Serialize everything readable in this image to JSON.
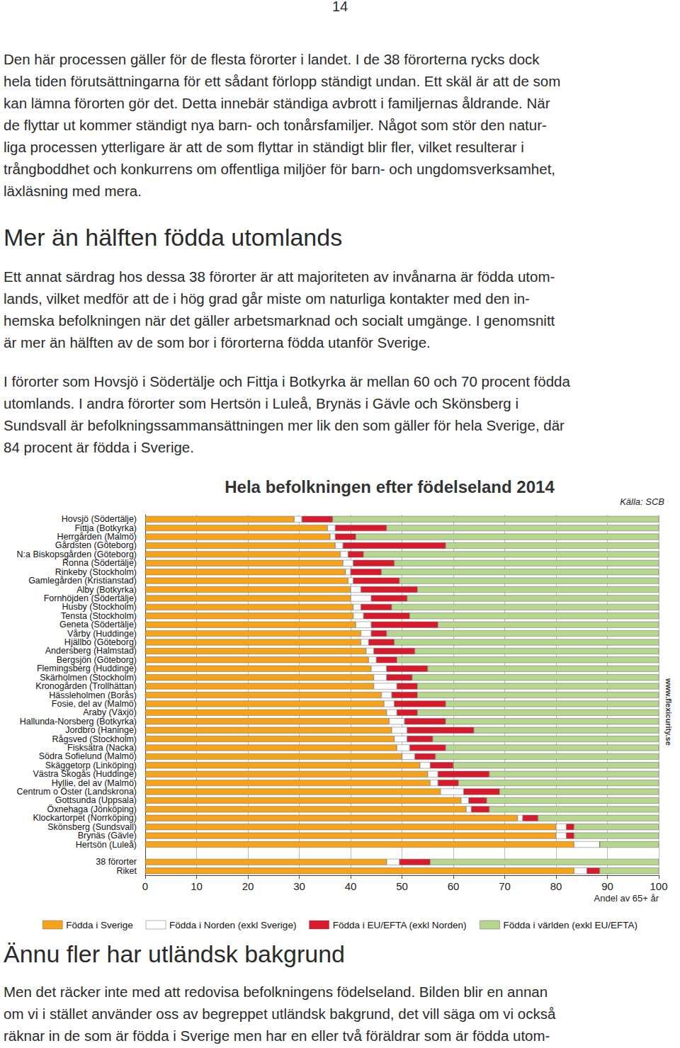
{
  "page": {
    "number": "14",
    "intro": [
      "Den här processen gäller för de flesta förorter i landet. I de 38 förorterna rycks dock",
      "hela tiden förutsättningarna för ett sådant förlopp ständigt undan. Ett skäl är att de som",
      "kan lämna förorten gör det. Detta innebär ständiga avbrott i familjernas åldrande. När",
      "de flyttar ut kommer ständigt nya barn- och tonårsfamiljer. Något som stör den natur-",
      "liga processen ytterligare är att de som flyttar in ständigt blir fler, vilket resulterar i",
      "trångboddhet och konkurrens om offentliga miljöer för barn- och ungdomsverksamhet,",
      "läxläsning med mera."
    ],
    "heading_1": "Mer än hälften födda utomlands",
    "section_1": [
      [
        "Ett annat särdrag hos dessa 38 förorter är att majoriteten av invånarna är födda utom-",
        "lands, vilket medför att de i hög grad går miste om naturliga kontakter med den in-",
        "hemska befolkningen när det gäller arbetsmarknad och socialt umgänge. I genomsnitt",
        "är mer än hälften av de som bor i förorterna födda utanför Sverige."
      ],
      [
        "I förorter som Hovsjö i Södertälje och Fittja i Botkyrka är mellan 60 och 70 procent födda",
        "utomlands. I andra förorter som Hertsön i Luleå, Brynäs i Gävle och Skönsberg i",
        "Sundsvall är befolkningssammansättningen mer lik den som gäller för hela Sverige, där",
        "84 procent är födda i Sverige."
      ]
    ],
    "heading_2": "Ännu fler har utländsk bakgrund",
    "section_2": [
      [
        "Men det räcker inte med att redovisa befolkningens födelseland. Bilden blir en annan",
        "om vi i stället använder oss av begreppet utländsk bakgrund, det vill säga om vi också",
        "räknar in de som är födda i Sverige men har en eller två föräldrar som är födda utom-"
      ]
    ]
  },
  "chart_data": {
    "type": "bar",
    "orientation": "horizontal",
    "stacked": true,
    "title": "Hela befolkningen efter födelseland 2014",
    "source": "Källa: SCB",
    "watermark": "www.flexicurity.se",
    "x_label": "Andel av 65+ år",
    "categories": [
      "Hovsjö (Södertälje)",
      "Fittja (Botkyrka)",
      "Herrgården (Malmö)",
      "Gårdsten (Göteborg)",
      "N:a Biskopsgården (Göteborg)",
      "Ronna (Södertälje)",
      "Rinkeby (Stockholm)",
      "Gamlegården (Kristianstad)",
      "Alby (Botkyrka)",
      "Fornhöjden (Södertälje)",
      "Husby (Stockholm)",
      "Tensta (Stockholm)",
      "Geneta (Södertälje)",
      "Vårby (Huddinge)",
      "Hjällbo (Göteborg)",
      "Andersberg (Halmstad)",
      "Bergsjön (Göteborg)",
      "Flemingsberg (Huddinge)",
      "Skärholmen (Stockholm)",
      "Kronogården (Trollhättan)",
      "Hässleholmen (Borås)",
      "Fosie, del av (Malmö)",
      "Araby (Växjö)",
      "Hallunda-Norsberg (Botkyrka)",
      "Jordbro (Haninge)",
      "Rågsved (Stockholm)",
      "Fisksätra (Nacka)",
      "Södra Sofielund (Malmö)",
      "Skäggetorp (Linköping)",
      "Västra Skogås (Huddinge)",
      "Hyllie, del av (Malmö)",
      "Centrum o Öster (Landskrona)",
      "Gottsunda (Uppsala)",
      "Öxnehaga (Jönköping)",
      "Klockartorpet (Norrköping)",
      "Skönsberg (Sundsvall)",
      "Brynäs (Gävle)",
      "Hertsön (Luleå)",
      null,
      "38 förorter",
      "Riket"
    ],
    "series": [
      {
        "name": "Födda i Sverige",
        "color": "#f5a31a",
        "values": [
          29,
          35.5,
          36,
          37,
          38,
          38.5,
          39,
          39.5,
          40,
          40,
          40.5,
          40.5,
          41,
          42,
          42,
          43,
          43.5,
          44,
          44.5,
          44.5,
          46,
          46.5,
          47,
          47.5,
          48,
          48.5,
          49,
          50,
          53.5,
          55,
          55.5,
          57.5,
          61.5,
          62.5,
          72.5,
          80,
          80,
          83.5,
          null,
          47,
          83.5
        ]
      },
      {
        "name": "Födda i Norden (exkl Sverige)",
        "color": "#ffffff",
        "values": [
          1.5,
          1.5,
          1,
          1.5,
          1.5,
          2,
          1,
          1,
          2,
          4,
          1.5,
          2,
          3,
          2,
          1.5,
          1.5,
          1.5,
          3,
          2.5,
          4.5,
          2,
          2,
          2,
          3,
          3,
          2.5,
          2.5,
          2.5,
          2,
          2,
          1.5,
          4.5,
          1.5,
          1,
          1,
          2,
          2,
          5,
          null,
          2.5,
          2.5
        ]
      },
      {
        "name": "Födda i EU/EFTA (exkl Norden)",
        "color": "#d71a2c",
        "values": [
          6,
          10,
          4,
          20,
          3,
          8,
          6,
          9,
          11,
          7,
          6,
          9,
          13,
          3,
          5,
          8,
          4,
          8,
          5,
          4,
          5,
          10,
          4,
          8,
          13,
          5,
          7,
          4,
          4.5,
          10,
          4,
          7,
          3.5,
          3.5,
          3,
          1.5,
          1.5,
          0,
          null,
          6,
          2.5
        ]
      },
      {
        "name": "Födda i världen (exkl EU/EFTA)",
        "color": "#b6d58e",
        "values": [
          63.5,
          53,
          59,
          41.5,
          57.5,
          51.5,
          54,
          50.5,
          47,
          49,
          52,
          48.5,
          43,
          53,
          51.5,
          47.5,
          51,
          45,
          48,
          47,
          47,
          41.5,
          47,
          41.5,
          36,
          44,
          41.5,
          43.5,
          40,
          33,
          39,
          31,
          33.5,
          33,
          23.5,
          16.5,
          16.5,
          11.5,
          null,
          44.5,
          11.5
        ]
      }
    ],
    "xlim": [
      0,
      100
    ],
    "xticks": [
      0,
      10,
      20,
      30,
      40,
      50,
      60,
      70,
      80,
      90,
      100
    ],
    "grid": true,
    "legend": "bottom"
  }
}
